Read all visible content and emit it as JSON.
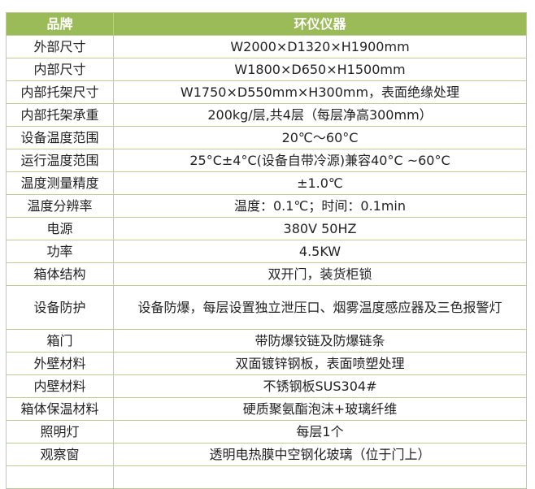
{
  "header": {
    "label": "品牌",
    "value": "环仪仪器"
  },
  "rows": [
    {
      "label": "外部尺寸",
      "value": "W2000×D1320×H1900mm"
    },
    {
      "label": "内部尺寸",
      "value": "W1800×D650×H1500mm"
    },
    {
      "label": "内部托架尺寸",
      "value": "W1750×D550mm×H300mm，表面绝缘处理"
    },
    {
      "label": "内部托架承重",
      "value": "200kg/层,共4层（每层净高300mm）"
    },
    {
      "label": "设备温度范围",
      "value": "20℃～60°C"
    },
    {
      "label": "运行温度范围",
      "value": "25°C±4°C(设备自带冷源)兼容40°C ~60°C"
    },
    {
      "label": "温度测量精度",
      "value": "±1.0℃"
    },
    {
      "label": "温度分辨率",
      "value": "温度：0.1℃；时间：0.1min"
    },
    {
      "label": "电源",
      "value": "380V 50HZ"
    },
    {
      "label": "功率",
      "value": "4.5KW"
    },
    {
      "label": "箱体结构",
      "value": "双开门，装货柜锁"
    },
    {
      "label": "设备防护",
      "value": "设备防爆，每层设置独立泄压口、烟雾温度感应器及三色报警灯"
    },
    {
      "label": "箱门",
      "value": "带防爆铰链及防爆链条"
    },
    {
      "label": "外壁材料",
      "value": "双面镀锌钢板，表面喷塑处理"
    },
    {
      "label": "内壁材料",
      "value": "不锈钢板SUS304#"
    },
    {
      "label": "箱体保温材料",
      "value": "硬质聚氨酯泡沫+玻璃纤维"
    },
    {
      "label": "照明灯",
      "value": "每层1个"
    },
    {
      "label": "观察窗",
      "value": "透明电热膜中空钢化玻璃（位于门上）"
    }
  ],
  "colors": {
    "header_bg": "#9bbb59",
    "border": "#b9cf94"
  }
}
